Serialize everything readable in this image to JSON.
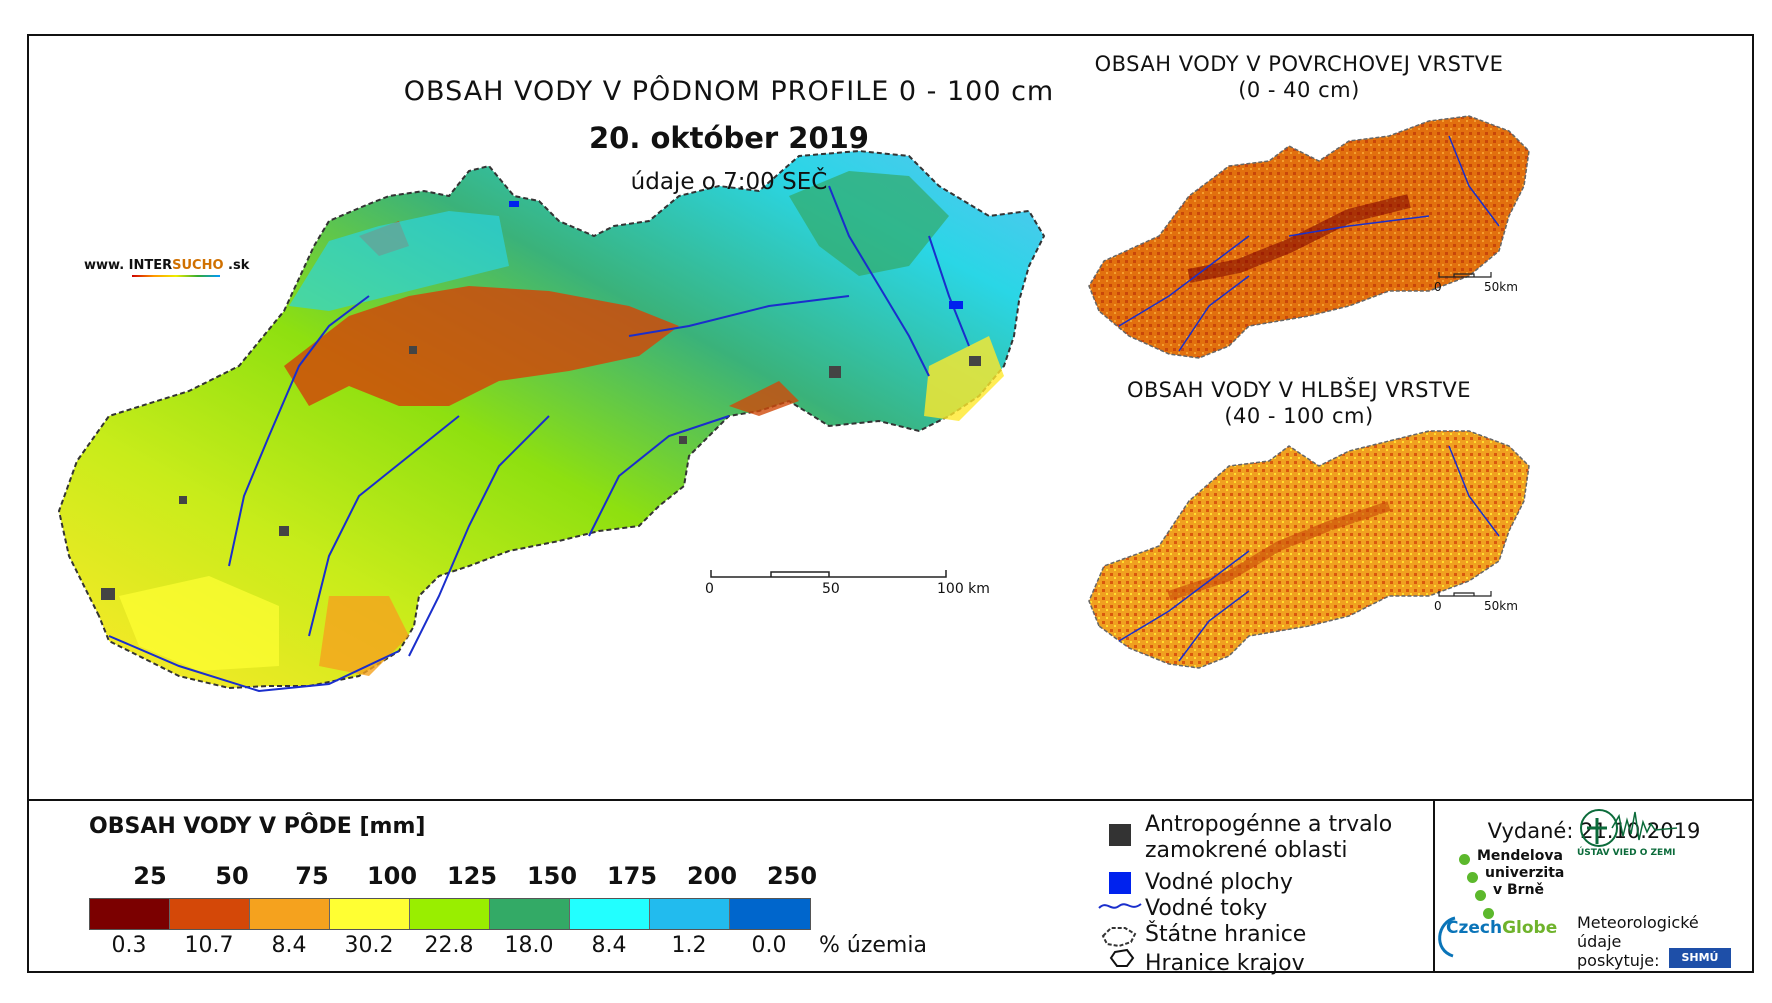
{
  "main_title": "OBSAH VODY V PÔDNOM PROFILE 0 - 100 cm",
  "date": "20. október 2019",
  "time_note": "údaje o 7:00 SEČ",
  "website": {
    "prefix": "www. INTER",
    "highlight": "SUCHO",
    "suffix": " .sk"
  },
  "surface_map": {
    "title_line1": "OBSAH VODY V POVRCHOVEJ VRSTVE",
    "title_line2": "(0 - 40 cm)",
    "scale_start": "0",
    "scale_end": "50km"
  },
  "deep_map": {
    "title_line1": "OBSAH VODY V HLBŠEJ VRSTVE",
    "title_line2": "(40 - 100 cm)",
    "scale_start": "0",
    "scale_end": "50km"
  },
  "main_scale": {
    "labels": [
      "0",
      "50",
      "100 km"
    ]
  },
  "legend": {
    "title": "OBSAH VODY V PÔDE [mm]",
    "class_bounds": [
      "25",
      "50",
      "75",
      "100",
      "125",
      "150",
      "175",
      "200",
      "250"
    ],
    "class_colors": [
      "#7b0000",
      "#d44808",
      "#f5a21e",
      "#ffff33",
      "#99ee00",
      "#33aa66",
      "#22ffff",
      "#22bbee",
      "#0066cc"
    ],
    "percent_values": [
      "0.3",
      "10.7",
      "8.4",
      "30.2",
      "22.8",
      "18.0",
      "8.4",
      "1.2",
      "0.0"
    ],
    "percent_unit": "% územia"
  },
  "symbols_legend": {
    "anthropogenic_line1": "Antropogénne a trvalo",
    "anthropogenic_line2": "zamokrené oblasti",
    "water_bodies": "Vodné plochy",
    "rivers": "Vodné toky",
    "state_border": "Štátne hranice",
    "region_border": "Hranice krajov"
  },
  "issued": "Vydané: 21.10.2019",
  "institutions": {
    "mendel_line1": "Mendelova",
    "mendel_line2": "univerzita",
    "mendel_line3": "v Brně",
    "czechglobe_a": "Czech",
    "czechglobe_b": "Globe",
    "uvz": "ÚSTAV VIED O ZEMI",
    "meteo_line1": "Meteorologické",
    "meteo_line2": "údaje",
    "meteo_line3": "poskytuje:",
    "shmu": "SHMÚ"
  },
  "colors": {
    "river": "#1a2ecc",
    "urban": "#444444",
    "border": "#222222"
  }
}
